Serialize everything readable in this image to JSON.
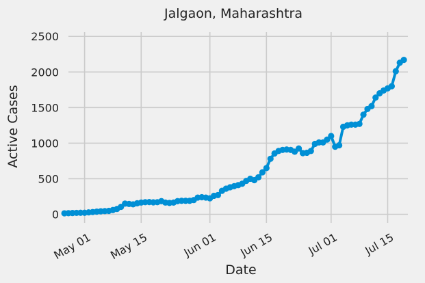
{
  "chart_data": {
    "type": "line",
    "title": "Jalgaon, Maharashtra",
    "xlabel": "Date",
    "ylabel": "Active Cases",
    "x_ticks": [
      "2020-05-01",
      "2020-05-15",
      "2020-06-01",
      "2020-06-15",
      "2020-07-01",
      "2020-07-15"
    ],
    "x_tick_labels": [
      "May 01",
      "May 15",
      "Jun 01",
      "Jun 15",
      "Jul 01",
      "Jul 15"
    ],
    "y_ticks": [
      0,
      500,
      1000,
      1500,
      2000,
      2500
    ],
    "y_tick_labels": [
      "0",
      "500",
      "1000",
      "1500",
      "2000",
      "2500"
    ],
    "xlim": [
      "2020-04-27",
      "2020-07-20"
    ],
    "ylim": [
      -120,
      2560
    ],
    "grid": true,
    "series": [
      {
        "color": "#008fd5",
        "x": [
          "2020-04-26",
          "2020-04-27",
          "2020-04-28",
          "2020-04-29",
          "2020-04-30",
          "2020-05-01",
          "2020-05-02",
          "2020-05-03",
          "2020-05-04",
          "2020-05-05",
          "2020-05-06",
          "2020-05-07",
          "2020-05-08",
          "2020-05-09",
          "2020-05-10",
          "2020-05-11",
          "2020-05-12",
          "2020-05-13",
          "2020-05-14",
          "2020-05-15",
          "2020-05-16",
          "2020-05-17",
          "2020-05-18",
          "2020-05-19",
          "2020-05-20",
          "2020-05-21",
          "2020-05-22",
          "2020-05-23",
          "2020-05-24",
          "2020-05-25",
          "2020-05-26",
          "2020-05-27",
          "2020-05-28",
          "2020-05-29",
          "2020-05-30",
          "2020-05-31",
          "2020-06-01",
          "2020-06-02",
          "2020-06-03",
          "2020-06-04",
          "2020-06-05",
          "2020-06-06",
          "2020-06-07",
          "2020-06-08",
          "2020-06-09",
          "2020-06-10",
          "2020-06-11",
          "2020-06-12",
          "2020-06-13",
          "2020-06-14",
          "2020-06-15",
          "2020-06-16",
          "2020-06-17",
          "2020-06-18",
          "2020-06-19",
          "2020-06-20",
          "2020-06-21",
          "2020-06-22",
          "2020-06-23",
          "2020-06-24",
          "2020-06-25",
          "2020-06-26",
          "2020-06-27",
          "2020-06-28",
          "2020-06-29",
          "2020-06-30",
          "2020-07-01",
          "2020-07-02",
          "2020-07-03",
          "2020-07-04",
          "2020-07-05",
          "2020-07-06",
          "2020-07-07",
          "2020-07-08",
          "2020-07-09",
          "2020-07-10",
          "2020-07-11",
          "2020-07-12",
          "2020-07-13",
          "2020-07-14",
          "2020-07-15",
          "2020-07-16",
          "2020-07-17",
          "2020-07-18",
          "2020-07-19"
        ],
        "y": [
          14,
          16,
          18,
          20,
          22,
          22,
          27,
          32,
          37,
          42,
          45,
          48,
          60,
          75,
          105,
          150,
          145,
          140,
          155,
          165,
          170,
          172,
          168,
          170,
          185,
          165,
          160,
          165,
          185,
          190,
          190,
          190,
          200,
          235,
          240,
          235,
          225,
          260,
          270,
          330,
          360,
          380,
          395,
          410,
          430,
          470,
          500,
          480,
          520,
          590,
          650,
          780,
          855,
          890,
          905,
          910,
          905,
          880,
          925,
          860,
          865,
          890,
          990,
          1010,
          1010,
          1050,
          1100,
          950,
          970,
          1230,
          1250,
          1260,
          1260,
          1270,
          1400,
          1480,
          1520,
          1640,
          1700,
          1740,
          1770,
          1800,
          2010,
          2130,
          2170
        ]
      }
    ]
  }
}
